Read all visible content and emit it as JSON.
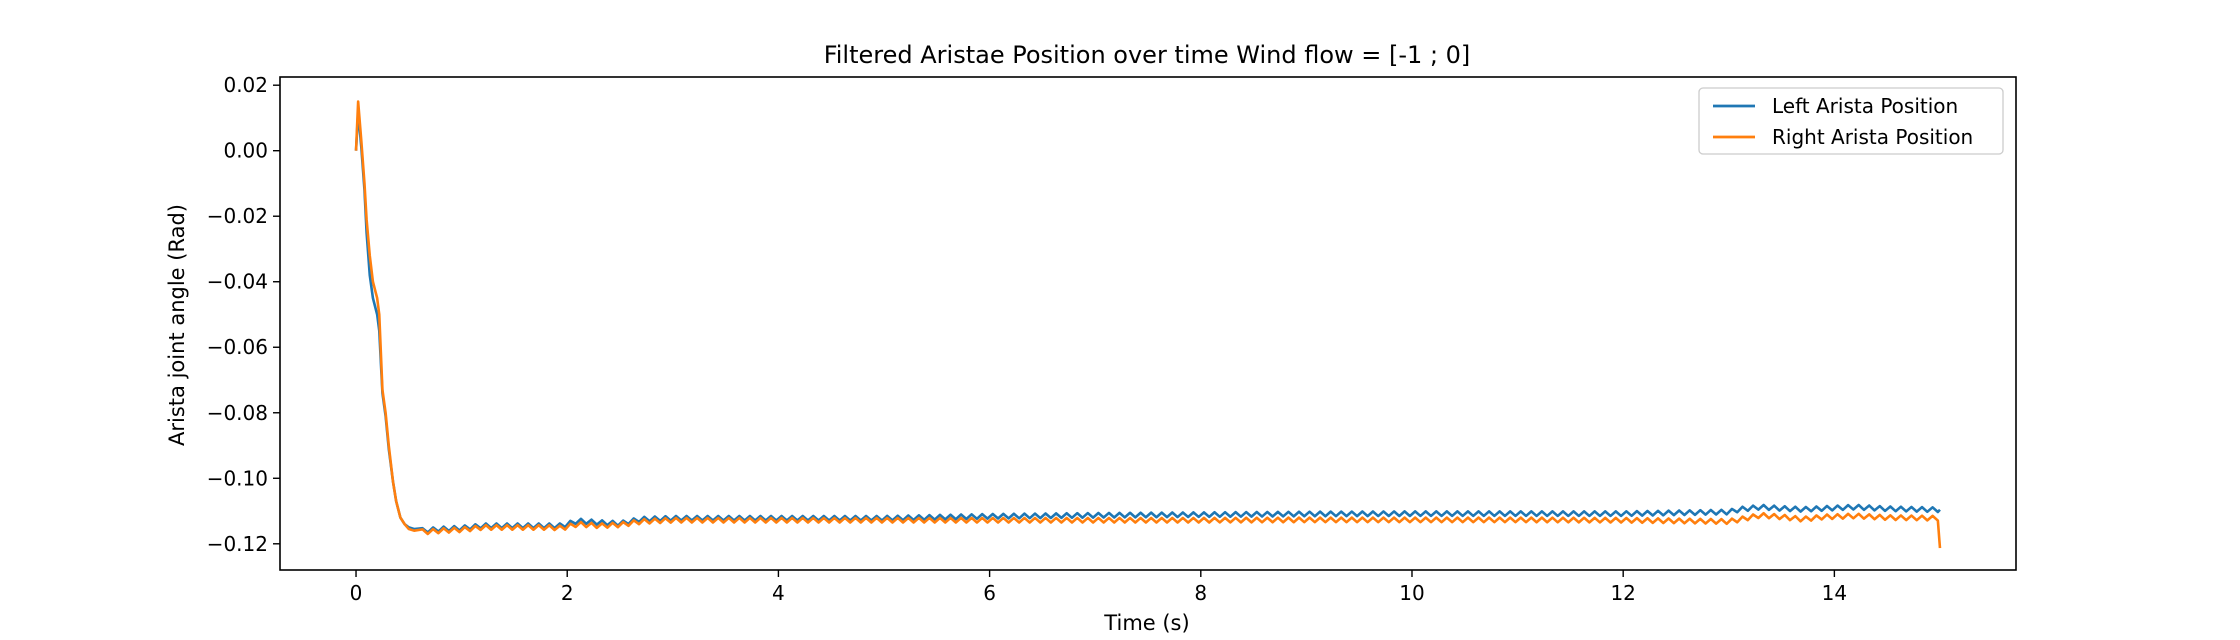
{
  "chart_data": {
    "type": "line",
    "title": "Filtered Aristae Position over time Wind flow = [-1 ; 0]",
    "xlabel": "Time (s)",
    "ylabel": "Arista joint angle (Rad)",
    "xlim": [
      -0.72,
      15.72
    ],
    "ylim": [
      -0.128,
      0.0225
    ],
    "x_ticks": [
      0,
      2,
      4,
      6,
      8,
      10,
      12,
      14
    ],
    "x_tick_labels": [
      "0",
      "2",
      "4",
      "6",
      "8",
      "10",
      "12",
      "14"
    ],
    "y_ticks": [
      0.02,
      0.0,
      -0.02,
      -0.04,
      -0.06,
      -0.08,
      -0.1,
      -0.12
    ],
    "y_tick_labels": [
      "0.02",
      "0.00",
      "−0.02",
      "−0.04",
      "−0.06",
      "−0.08",
      "−0.10",
      "−0.12"
    ],
    "grid": false,
    "legend_position": "top-right",
    "series": [
      {
        "name": "Left Arista Position",
        "color": "#1f77b4",
        "x": [
          0.0,
          0.02,
          0.05,
          0.08,
          0.1,
          0.13,
          0.16,
          0.2,
          0.22,
          0.25,
          0.28,
          0.31,
          0.35,
          0.38,
          0.42,
          0.46,
          0.5,
          0.55,
          0.6,
          0.7,
          0.8,
          1.0,
          1.2,
          1.4,
          1.6,
          1.8,
          1.95,
          2.1,
          2.3,
          2.5,
          2.7,
          3.0,
          4.0,
          5.0,
          6.0,
          7.0,
          8.0,
          9.0,
          10.0,
          11.0,
          12.0,
          13.0,
          13.1,
          13.3,
          13.5,
          13.7,
          13.9,
          14.2,
          14.5,
          14.8,
          15.0,
          15.0
        ],
        "y": [
          0.0,
          0.012,
          0.001,
          -0.012,
          -0.025,
          -0.038,
          -0.045,
          -0.05,
          -0.055,
          -0.074,
          -0.081,
          -0.091,
          -0.101,
          -0.107,
          -0.112,
          -0.114,
          -0.115,
          -0.1155,
          -0.116,
          -0.1158,
          -0.1155,
          -0.1152,
          -0.1145,
          -0.1145,
          -0.1145,
          -0.1145,
          -0.1145,
          -0.113,
          -0.1135,
          -0.1138,
          -0.1125,
          -0.1122,
          -0.1122,
          -0.1122,
          -0.1116,
          -0.1113,
          -0.1111,
          -0.1109,
          -0.1108,
          -0.1108,
          -0.1108,
          -0.1103,
          -0.1095,
          -0.1088,
          -0.1092,
          -0.1095,
          -0.1092,
          -0.1088,
          -0.1093,
          -0.1095,
          -0.1096,
          -0.1096
        ],
        "wiggle": 0.0007
      },
      {
        "name": "Right Arista Position",
        "color": "#ff7f0e",
        "x": [
          0.0,
          0.02,
          0.05,
          0.08,
          0.1,
          0.13,
          0.16,
          0.2,
          0.22,
          0.25,
          0.28,
          0.31,
          0.35,
          0.38,
          0.42,
          0.46,
          0.5,
          0.55,
          0.6,
          0.7,
          0.8,
          1.0,
          1.2,
          1.4,
          1.6,
          1.8,
          1.95,
          2.1,
          2.3,
          2.5,
          2.7,
          3.0,
          4.0,
          5.0,
          6.0,
          7.0,
          8.0,
          9.0,
          10.0,
          11.0,
          12.0,
          13.0,
          13.1,
          13.3,
          13.5,
          13.7,
          13.9,
          14.2,
          14.5,
          14.8,
          14.98,
          15.0
        ],
        "y": [
          0.0,
          0.015,
          0.003,
          -0.01,
          -0.021,
          -0.032,
          -0.04,
          -0.045,
          -0.05,
          -0.073,
          -0.08,
          -0.09,
          -0.101,
          -0.107,
          -0.112,
          -0.114,
          -0.1155,
          -0.116,
          -0.1163,
          -0.1163,
          -0.116,
          -0.1157,
          -0.115,
          -0.115,
          -0.115,
          -0.115,
          -0.1152,
          -0.114,
          -0.1145,
          -0.1142,
          -0.1132,
          -0.1128,
          -0.1128,
          -0.1128,
          -0.1128,
          -0.1128,
          -0.1128,
          -0.1127,
          -0.1127,
          -0.1127,
          -0.1128,
          -0.1132,
          -0.1126,
          -0.1113,
          -0.1118,
          -0.1125,
          -0.1118,
          -0.1115,
          -0.112,
          -0.1121,
          -0.1122,
          -0.1213
        ],
        "wiggle": 0.0007
      }
    ]
  }
}
